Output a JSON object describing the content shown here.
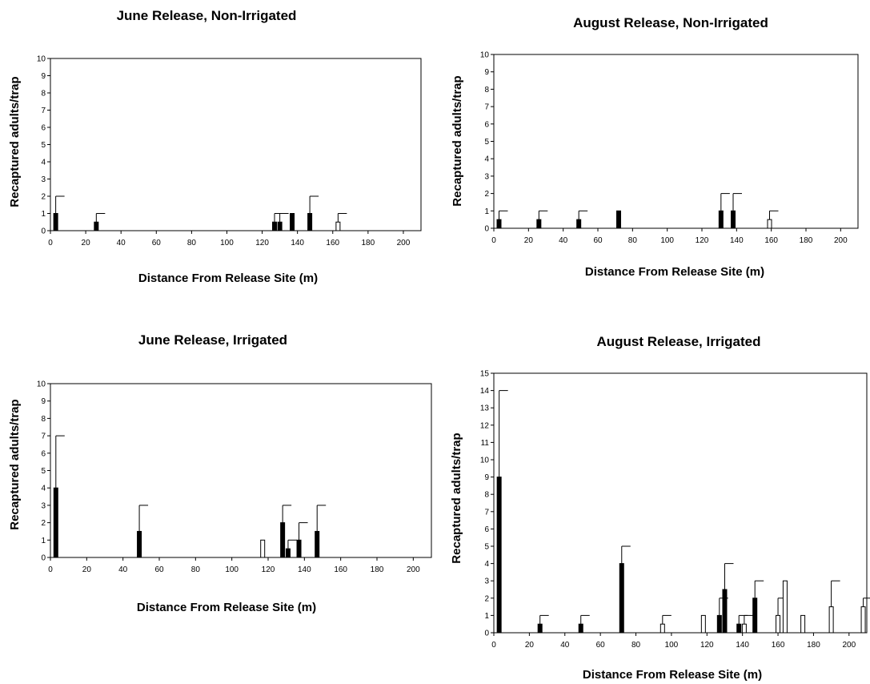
{
  "chart_data": [
    {
      "type": "bar",
      "title": "June Release, Non-Irrigated",
      "xlabel": "Distance From Release Site  (m)",
      "ylabel": "Recaptured adults/trap",
      "xlim": [
        0,
        210
      ],
      "ylim": [
        0,
        10
      ],
      "xticks": [
        0,
        20,
        40,
        60,
        80,
        100,
        120,
        140,
        160,
        180,
        200
      ],
      "yticks": [
        0,
        1,
        2,
        3,
        4,
        5,
        6,
        7,
        8,
        9,
        10
      ],
      "grid": false,
      "colors": {
        "filled": "#000000",
        "open": "#ffffff"
      },
      "bars": [
        {
          "x": 3,
          "value": 1.0,
          "error": 1.0,
          "fill": "filled"
        },
        {
          "x": 26,
          "value": 0.5,
          "error": 0.5,
          "fill": "filled"
        },
        {
          "x": 127,
          "value": 0.5,
          "error": 0.5,
          "fill": "filled"
        },
        {
          "x": 130,
          "value": 0.5,
          "error": 0.5,
          "fill": "filled"
        },
        {
          "x": 137,
          "value": 1.0,
          "error": 0,
          "fill": "filled"
        },
        {
          "x": 147,
          "value": 1.0,
          "error": 1.0,
          "fill": "filled"
        },
        {
          "x": 163,
          "value": 0.5,
          "error": 0.5,
          "fill": "open"
        }
      ]
    },
    {
      "type": "bar",
      "title": "August Release, Non-Irrigated",
      "xlabel": "Distance From Release Site  (m)",
      "ylabel": "Recaptured adults/trap",
      "xlim": [
        0,
        210
      ],
      "ylim": [
        0,
        10
      ],
      "xticks": [
        0,
        20,
        40,
        60,
        80,
        100,
        120,
        140,
        160,
        180,
        200
      ],
      "yticks": [
        0,
        1,
        2,
        3,
        4,
        5,
        6,
        7,
        8,
        9,
        10
      ],
      "grid": false,
      "colors": {
        "filled": "#000000",
        "open": "#ffffff"
      },
      "bars": [
        {
          "x": 3,
          "value": 0.5,
          "error": 0.5,
          "fill": "filled"
        },
        {
          "x": 26,
          "value": 0.5,
          "error": 0.5,
          "fill": "filled"
        },
        {
          "x": 49,
          "value": 0.5,
          "error": 0.5,
          "fill": "filled"
        },
        {
          "x": 72,
          "value": 1.0,
          "error": 0,
          "fill": "filled"
        },
        {
          "x": 131,
          "value": 1.0,
          "error": 1.0,
          "fill": "filled"
        },
        {
          "x": 138,
          "value": 1.0,
          "error": 1.0,
          "fill": "filled"
        },
        {
          "x": 159,
          "value": 0.5,
          "error": 0.5,
          "fill": "open"
        }
      ]
    },
    {
      "type": "bar",
      "title": "June Release, Irrigated",
      "xlabel": "Distance From Release Site (m)",
      "ylabel": "Recaptured adults/trap",
      "xlim": [
        0,
        210
      ],
      "ylim": [
        0,
        10
      ],
      "xticks": [
        0,
        20,
        40,
        60,
        80,
        100,
        120,
        140,
        160,
        180,
        200
      ],
      "yticks": [
        0,
        1,
        2,
        3,
        4,
        5,
        6,
        7,
        8,
        9,
        10
      ],
      "grid": false,
      "colors": {
        "filled": "#000000",
        "open": "#ffffff"
      },
      "bars": [
        {
          "x": 3,
          "value": 4.0,
          "error": 3.0,
          "fill": "filled"
        },
        {
          "x": 49,
          "value": 1.5,
          "error": 1.5,
          "fill": "filled"
        },
        {
          "x": 117,
          "value": 1.0,
          "error": 0,
          "fill": "open"
        },
        {
          "x": 128,
          "value": 2.0,
          "error": 1.0,
          "fill": "filled"
        },
        {
          "x": 131,
          "value": 0.5,
          "error": 0.5,
          "fill": "filled"
        },
        {
          "x": 137,
          "value": 1.0,
          "error": 1.0,
          "fill": "filled"
        },
        {
          "x": 147,
          "value": 1.5,
          "error": 1.5,
          "fill": "filled"
        }
      ]
    },
    {
      "type": "bar",
      "title": "August Release, Irrigated",
      "xlabel": "Distance From Release Site (m)",
      "ylabel": "Recaptured adults/trap",
      "xlim": [
        0,
        210
      ],
      "ylim": [
        0,
        15
      ],
      "xticks": [
        0,
        20,
        40,
        60,
        80,
        100,
        120,
        140,
        160,
        180,
        200
      ],
      "yticks": [
        0,
        1,
        2,
        3,
        4,
        5,
        6,
        7,
        8,
        9,
        10,
        11,
        12,
        13,
        14,
        15
      ],
      "grid": false,
      "colors": {
        "filled": "#000000",
        "open": "#ffffff"
      },
      "bars": [
        {
          "x": 3,
          "value": 9.0,
          "error": 5.0,
          "fill": "filled"
        },
        {
          "x": 26,
          "value": 0.5,
          "error": 0.5,
          "fill": "filled"
        },
        {
          "x": 49,
          "value": 0.5,
          "error": 0.5,
          "fill": "filled"
        },
        {
          "x": 72,
          "value": 4.0,
          "error": 1.0,
          "fill": "filled"
        },
        {
          "x": 95,
          "value": 0.5,
          "error": 0.5,
          "fill": "open"
        },
        {
          "x": 118,
          "value": 1.0,
          "error": 0,
          "fill": "open"
        },
        {
          "x": 127,
          "value": 1.0,
          "error": 1.0,
          "fill": "filled"
        },
        {
          "x": 130,
          "value": 2.5,
          "error": 1.5,
          "fill": "filled"
        },
        {
          "x": 138,
          "value": 0.5,
          "error": 0.5,
          "fill": "filled"
        },
        {
          "x": 141,
          "value": 0.5,
          "error": 0.5,
          "fill": "open"
        },
        {
          "x": 147,
          "value": 2.0,
          "error": 1.0,
          "fill": "filled"
        },
        {
          "x": 160,
          "value": 1.0,
          "error": 1.0,
          "fill": "open"
        },
        {
          "x": 164,
          "value": 3.0,
          "error": 0,
          "fill": "open"
        },
        {
          "x": 174,
          "value": 1.0,
          "error": 0,
          "fill": "open"
        },
        {
          "x": 190,
          "value": 1.5,
          "error": 1.5,
          "fill": "open"
        },
        {
          "x": 208,
          "value": 1.5,
          "error": 0.5,
          "fill": "open"
        }
      ]
    }
  ]
}
